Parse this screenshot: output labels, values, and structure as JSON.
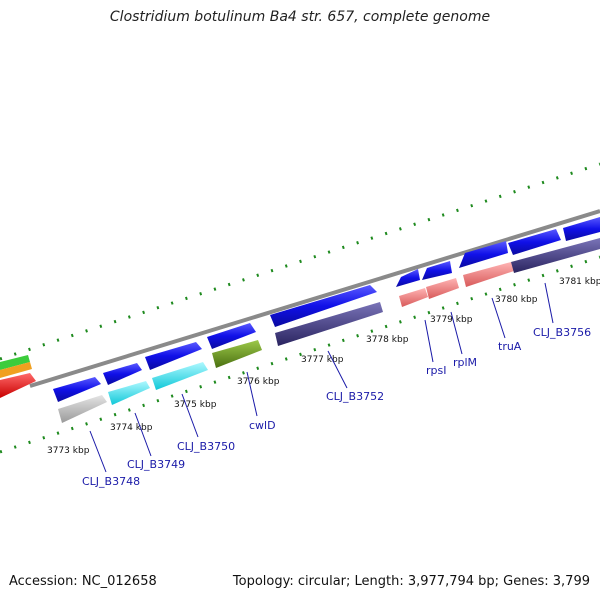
{
  "title": "Clostridium botulinum Ba4 str. 657, complete genome",
  "footer": {
    "accession": "Accession: NC_012658",
    "stats": "Topology: circular; Length: 3,977,794 bp; Genes: 3,799"
  },
  "kbp_labels": [
    "3773 kbp",
    "3774 kbp",
    "3775 kbp",
    "3776 kbp",
    "3777 kbp",
    "3778 kbp",
    "3779 kbp",
    "3780 kbp",
    "3781 kbp"
  ],
  "gene_labels": [
    "CLJ_B3748",
    "CLJ_B3749",
    "CLJ_B3750",
    "cwlD",
    "CLJ_B3752",
    "rpsI",
    "rplM",
    "truA",
    "CLJ_B3756"
  ],
  "colors": {
    "cds": "#1010e8",
    "grey_feature": "#c4c4c4",
    "cyan_feature": "#22e8f0",
    "olive_feature": "#6f9a24",
    "navy_feature": "#4a4488",
    "salmon_feature": "#ee8080",
    "tick_green": "#1e8a1e",
    "backbone": "#8a8a8a"
  }
}
